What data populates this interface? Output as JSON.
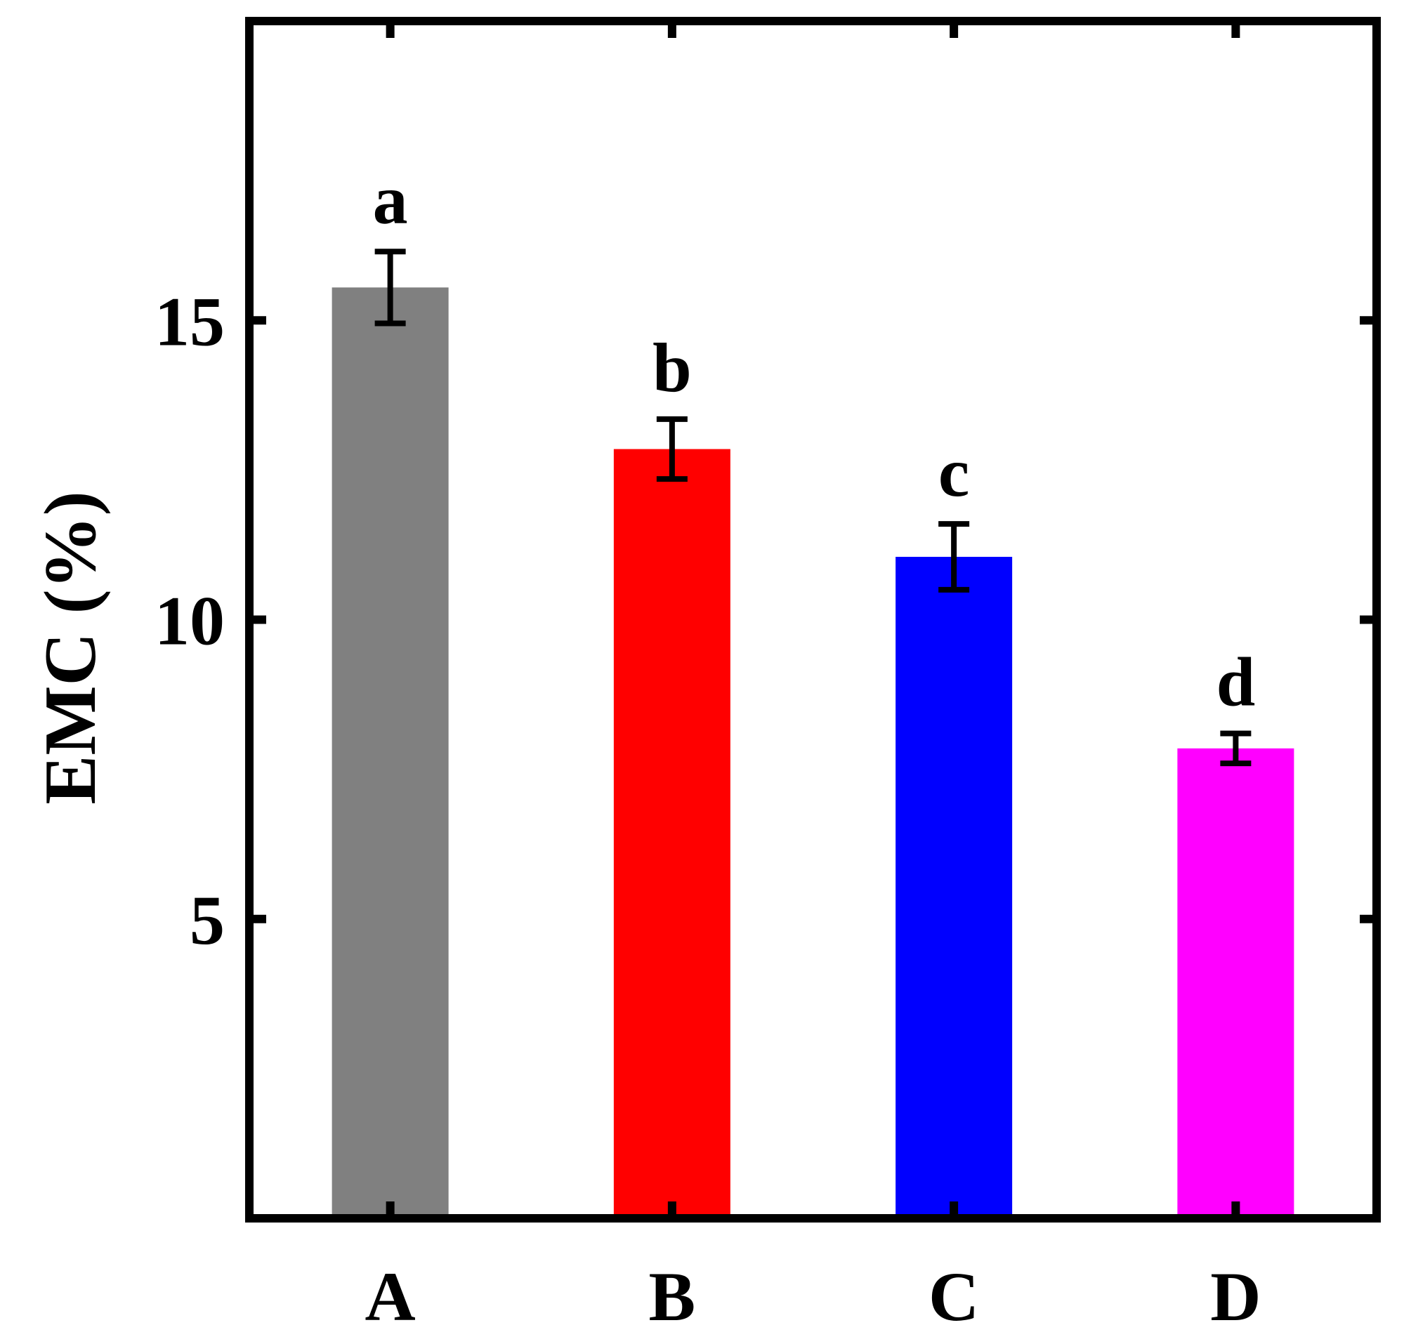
{
  "chart_data": {
    "type": "bar",
    "title": "",
    "xlabel": "",
    "ylabel": "EMC (%)",
    "categories": [
      "A",
      "B",
      "C",
      "D"
    ],
    "values": [
      15.55,
      12.85,
      11.05,
      7.85
    ],
    "errors": [
      0.6,
      0.5,
      0.55,
      0.25
    ],
    "significance_letters": [
      "a",
      "b",
      "c",
      "d"
    ],
    "colors": [
      "#808080",
      "#ff0000",
      "#0000ff",
      "#ff00ff"
    ],
    "ylim": [
      0,
      20
    ],
    "yticks": [
      5,
      10,
      15
    ],
    "grid": false,
    "legend": "none"
  }
}
